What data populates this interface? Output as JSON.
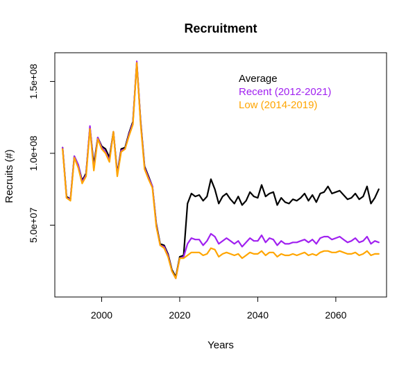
{
  "chart_data": {
    "type": "line",
    "title": "Recruitment",
    "xlabel": "Years",
    "ylabel": "Recruits (#)",
    "xlim": [
      1988,
      2073
    ],
    "ylim": [
      0,
      170000000
    ],
    "x_ticks": [
      2000,
      2020,
      2040,
      2060
    ],
    "x_tick_labels": [
      "2000",
      "2020",
      "2040",
      "2060"
    ],
    "y_ticks": [
      50000000,
      100000000,
      150000000
    ],
    "y_tick_labels": [
      "5.0e+07",
      "1.0e+08",
      "1.5e+08"
    ],
    "grid": false,
    "legend_position": "top-right",
    "x": [
      1990,
      1991,
      1992,
      1993,
      1994,
      1995,
      1996,
      1997,
      1998,
      1999,
      2000,
      2001,
      2002,
      2003,
      2004,
      2005,
      2006,
      2007,
      2008,
      2009,
      2010,
      2011,
      2012,
      2013,
      2014,
      2015,
      2016,
      2017,
      2018,
      2019,
      2020,
      2021,
      2022,
      2023,
      2024,
      2025,
      2026,
      2027,
      2028,
      2029,
      2030,
      2031,
      2032,
      2033,
      2034,
      2035,
      2036,
      2037,
      2038,
      2039,
      2040,
      2041,
      2042,
      2043,
      2044,
      2045,
      2046,
      2047,
      2048,
      2049,
      2050,
      2051,
      2052,
      2053,
      2054,
      2055,
      2056,
      2057,
      2058,
      2059,
      2060,
      2061,
      2062,
      2063,
      2064,
      2065,
      2066,
      2067,
      2068,
      2069,
      2070,
      2071
    ],
    "series": [
      {
        "name": "Average",
        "color": "#000000",
        "values": [
          104000000,
          70000000,
          68000000,
          98000000,
          92000000,
          81000000,
          86000000,
          118000000,
          92000000,
          111000000,
          105000000,
          103000000,
          97000000,
          115000000,
          86000000,
          103000000,
          104000000,
          114000000,
          122000000,
          163000000,
          122000000,
          91000000,
          84000000,
          77000000,
          51000000,
          37000000,
          36000000,
          30000000,
          19000000,
          14000000,
          28000000,
          29000000,
          65000000,
          72000000,
          70000000,
          71000000,
          67000000,
          70000000,
          82000000,
          75000000,
          65000000,
          70000000,
          72000000,
          68000000,
          65000000,
          70000000,
          64000000,
          67000000,
          73000000,
          70000000,
          69000000,
          78000000,
          70000000,
          72000000,
          73000000,
          64000000,
          69000000,
          66000000,
          65000000,
          68000000,
          67000000,
          69000000,
          72000000,
          67000000,
          71000000,
          66000000,
          72000000,
          73000000,
          77000000,
          72000000,
          73000000,
          74000000,
          71000000,
          68000000,
          69000000,
          72000000,
          68000000,
          70000000,
          77000000,
          65000000,
          69000000,
          75000000
        ]
      },
      {
        "name": "Recent (2012-2021)",
        "color": "#a020f0",
        "values": [
          104000000,
          69000000,
          68000000,
          98000000,
          92000000,
          80000000,
          85000000,
          119000000,
          89000000,
          111000000,
          104000000,
          101000000,
          95000000,
          115000000,
          85000000,
          102000000,
          103000000,
          113000000,
          121000000,
          164000000,
          121000000,
          90000000,
          83000000,
          77000000,
          50000000,
          36000000,
          35000000,
          29000000,
          18000000,
          13000000,
          27000000,
          28000000,
          37000000,
          41000000,
          40000000,
          40000000,
          36000000,
          39000000,
          44000000,
          42000000,
          37000000,
          39000000,
          41000000,
          39000000,
          37000000,
          39000000,
          35000000,
          38000000,
          41000000,
          39000000,
          39000000,
          43000000,
          38000000,
          41000000,
          40000000,
          36000000,
          39000000,
          37000000,
          37000000,
          38000000,
          38000000,
          39000000,
          40000000,
          38000000,
          40000000,
          37000000,
          41000000,
          42000000,
          42000000,
          40000000,
          41000000,
          42000000,
          40000000,
          38000000,
          39000000,
          41000000,
          38000000,
          39000000,
          42000000,
          37000000,
          39000000,
          38000000
        ]
      },
      {
        "name": "Low (2014-2019)",
        "color": "#ffa500",
        "values": [
          103000000,
          69000000,
          67000000,
          97000000,
          90000000,
          79000000,
          84000000,
          117000000,
          88000000,
          110000000,
          103000000,
          100000000,
          94000000,
          115000000,
          84000000,
          101000000,
          103000000,
          112000000,
          120000000,
          163000000,
          120000000,
          89000000,
          82000000,
          76000000,
          49000000,
          36000000,
          34000000,
          28000000,
          18000000,
          13000000,
          27000000,
          27000000,
          29000000,
          31000000,
          31000000,
          31000000,
          29000000,
          30000000,
          34000000,
          33000000,
          28000000,
          30000000,
          31000000,
          30000000,
          29000000,
          30000000,
          27000000,
          29000000,
          31000000,
          30000000,
          30000000,
          32000000,
          29000000,
          31000000,
          31000000,
          28000000,
          30000000,
          29000000,
          29000000,
          30000000,
          29000000,
          30000000,
          31000000,
          29000000,
          30000000,
          29000000,
          31000000,
          32000000,
          32000000,
          31000000,
          31000000,
          32000000,
          31000000,
          30000000,
          30000000,
          31000000,
          29000000,
          30000000,
          32000000,
          29000000,
          30000000,
          30000000
        ]
      }
    ]
  }
}
